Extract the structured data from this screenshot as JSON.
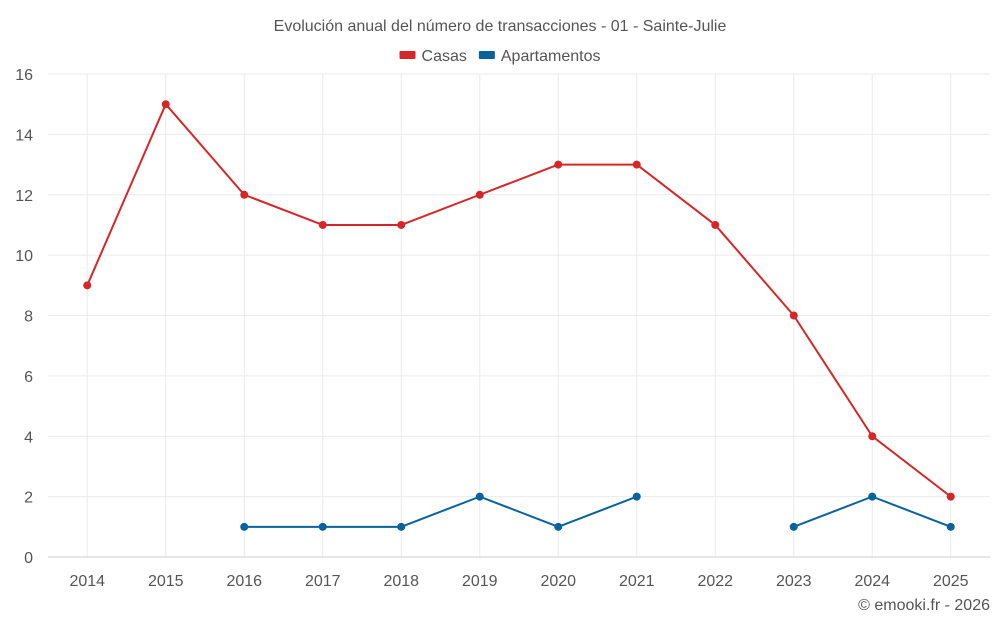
{
  "chart_data": {
    "type": "line",
    "title": "Evolución anual del número de transacciones - 01 - Sainte-Julie",
    "categories": [
      "2014",
      "2015",
      "2016",
      "2017",
      "2018",
      "2019",
      "2020",
      "2021",
      "2022",
      "2023",
      "2024",
      "2025"
    ],
    "series": [
      {
        "name": "Casas",
        "color": "#d62728",
        "values": [
          9,
          15,
          12,
          11,
          11,
          12,
          13,
          13,
          11,
          8,
          4,
          2
        ]
      },
      {
        "name": "Apartamentos",
        "color": "#08639c",
        "values": [
          null,
          null,
          1,
          1,
          1,
          2,
          1,
          2,
          null,
          1,
          2,
          1
        ]
      }
    ],
    "ylim": [
      0,
      16
    ],
    "yticks": [
      0,
      2,
      4,
      6,
      8,
      10,
      12,
      14,
      16
    ],
    "xlabel": "",
    "ylabel": "",
    "grid": true,
    "legend": "top-center"
  },
  "credit": "© emooki.fr - 2026"
}
